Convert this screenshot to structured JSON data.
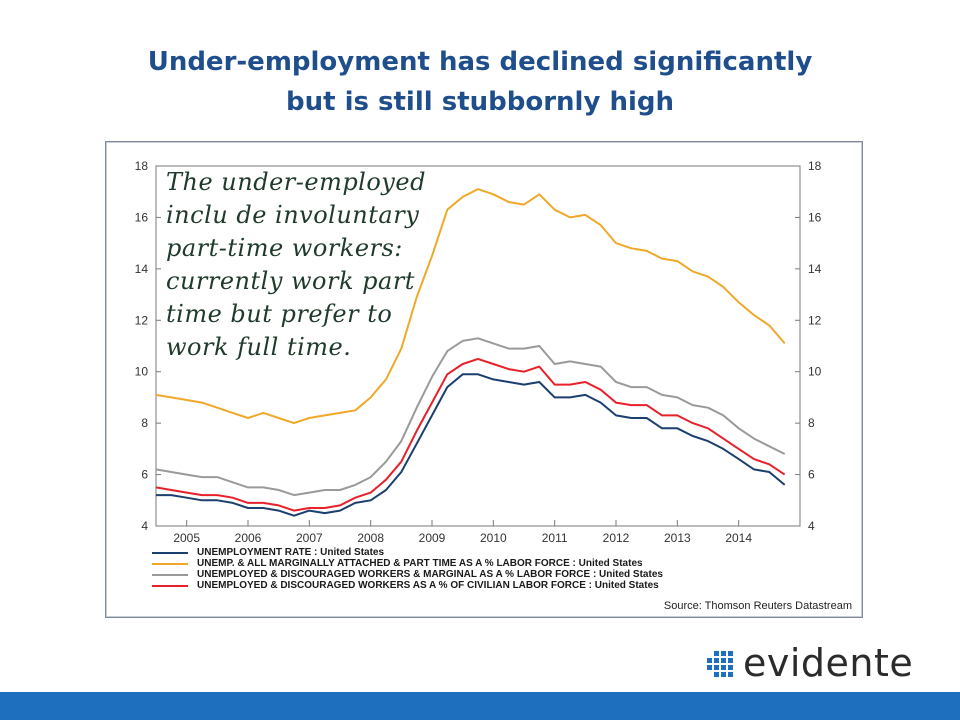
{
  "slide": {
    "title_line1": "Under-employment has declined significantly",
    "title_line2": "but is still stubbornly high"
  },
  "annotation": {
    "lines": [
      "The under-employed",
      "inclu de involuntary",
      "part-time workers:",
      "currently work part",
      "time but prefer to",
      "work full time."
    ]
  },
  "logo": {
    "text": "evidente",
    "color": "#1f6fbf"
  },
  "footer": {
    "bar_color": "#1f6fbf"
  },
  "chart_data": {
    "type": "line",
    "source": "Source: Thomson Reuters Datastream",
    "ylim": [
      4,
      18
    ],
    "yticks": [
      4,
      6,
      8,
      10,
      12,
      14,
      16,
      18
    ],
    "xlim": [
      2004.5,
      2015.0
    ],
    "xticks": [
      "2005",
      "2006",
      "2007",
      "2008",
      "2009",
      "2010",
      "2011",
      "2012",
      "2013",
      "2014"
    ],
    "grid": false,
    "legend_position": "bottom",
    "series": [
      {
        "name": "UNEMPLOYMENT RATE : United States",
        "color": "#1b3f6e",
        "x": [
          2004.5,
          2004.75,
          2005.0,
          2005.25,
          2005.5,
          2005.75,
          2006.0,
          2006.25,
          2006.5,
          2006.75,
          2007.0,
          2007.25,
          2007.5,
          2007.75,
          2008.0,
          2008.25,
          2008.5,
          2008.75,
          2009.0,
          2009.25,
          2009.5,
          2009.75,
          2010.0,
          2010.25,
          2010.5,
          2010.75,
          2011.0,
          2011.25,
          2011.5,
          2011.75,
          2012.0,
          2012.25,
          2012.5,
          2012.75,
          2013.0,
          2013.25,
          2013.5,
          2013.75,
          2014.0,
          2014.25,
          2014.5,
          2014.75
        ],
        "values": [
          5.2,
          5.2,
          5.1,
          5.0,
          5.0,
          4.9,
          4.7,
          4.7,
          4.6,
          4.4,
          4.6,
          4.5,
          4.6,
          4.9,
          5.0,
          5.4,
          6.1,
          7.2,
          8.3,
          9.4,
          9.9,
          9.9,
          9.7,
          9.6,
          9.5,
          9.6,
          9.0,
          9.0,
          9.1,
          8.8,
          8.3,
          8.2,
          8.2,
          7.8,
          7.8,
          7.5,
          7.3,
          7.0,
          6.6,
          6.2,
          6.1,
          5.6
        ]
      },
      {
        "name": "UNEMP. & ALL MARGINALLY ATTACHED & PART TIME AS A % LABOR FORCE : United States",
        "color": "#f0a828",
        "x": [
          2004.5,
          2004.75,
          2005.0,
          2005.25,
          2005.5,
          2005.75,
          2006.0,
          2006.25,
          2006.5,
          2006.75,
          2007.0,
          2007.25,
          2007.5,
          2007.75,
          2008.0,
          2008.25,
          2008.5,
          2008.75,
          2009.0,
          2009.25,
          2009.5,
          2009.75,
          2010.0,
          2010.25,
          2010.5,
          2010.75,
          2011.0,
          2011.25,
          2011.5,
          2011.75,
          2012.0,
          2012.25,
          2012.5,
          2012.75,
          2013.0,
          2013.25,
          2013.5,
          2013.75,
          2014.0,
          2014.25,
          2014.5,
          2014.75
        ],
        "values": [
          9.1,
          9.0,
          8.9,
          8.8,
          8.6,
          8.4,
          8.2,
          8.4,
          8.2,
          8.0,
          8.2,
          8.3,
          8.4,
          8.5,
          9.0,
          9.7,
          10.9,
          12.9,
          14.5,
          16.3,
          16.8,
          17.1,
          16.9,
          16.6,
          16.5,
          16.9,
          16.3,
          16.0,
          16.1,
          15.7,
          15.0,
          14.8,
          14.7,
          14.4,
          14.3,
          13.9,
          13.7,
          13.3,
          12.7,
          12.2,
          11.8,
          11.1
        ]
      },
      {
        "name": "UNEMPLOYED & DISCOURAGED WORKERS & MARGINAL AS A % LABOR FORCE : United States",
        "color": "#9a9a9a",
        "x": [
          2004.5,
          2004.75,
          2005.0,
          2005.25,
          2005.5,
          2005.75,
          2006.0,
          2006.25,
          2006.5,
          2006.75,
          2007.0,
          2007.25,
          2007.5,
          2007.75,
          2008.0,
          2008.25,
          2008.5,
          2008.75,
          2009.0,
          2009.25,
          2009.5,
          2009.75,
          2010.0,
          2010.25,
          2010.5,
          2010.75,
          2011.0,
          2011.25,
          2011.5,
          2011.75,
          2012.0,
          2012.25,
          2012.5,
          2012.75,
          2013.0,
          2013.25,
          2013.5,
          2013.75,
          2014.0,
          2014.25,
          2014.5,
          2014.75
        ],
        "values": [
          6.2,
          6.1,
          6.0,
          5.9,
          5.9,
          5.7,
          5.5,
          5.5,
          5.4,
          5.2,
          5.3,
          5.4,
          5.4,
          5.6,
          5.9,
          6.5,
          7.3,
          8.6,
          9.8,
          10.8,
          11.2,
          11.3,
          11.1,
          10.9,
          10.9,
          11.0,
          10.3,
          10.4,
          10.3,
          10.2,
          9.6,
          9.4,
          9.4,
          9.1,
          9.0,
          8.7,
          8.6,
          8.3,
          7.8,
          7.4,
          7.1,
          6.8
        ]
      },
      {
        "name": "UNEMPLOYED & DISCOURAGED WORKERS AS A % OF CIVILIAN LABOR FORCE : United States",
        "color": "#e8202a",
        "x": [
          2004.5,
          2004.75,
          2005.0,
          2005.25,
          2005.5,
          2005.75,
          2006.0,
          2006.25,
          2006.5,
          2006.75,
          2007.0,
          2007.25,
          2007.5,
          2007.75,
          2008.0,
          2008.25,
          2008.5,
          2008.75,
          2009.0,
          2009.25,
          2009.5,
          2009.75,
          2010.0,
          2010.25,
          2010.5,
          2010.75,
          2011.0,
          2011.25,
          2011.5,
          2011.75,
          2012.0,
          2012.25,
          2012.5,
          2012.75,
          2013.0,
          2013.25,
          2013.5,
          2013.75,
          2014.0,
          2014.25,
          2014.5,
          2014.75
        ],
        "values": [
          5.5,
          5.4,
          5.3,
          5.2,
          5.2,
          5.1,
          4.9,
          4.9,
          4.8,
          4.6,
          4.7,
          4.7,
          4.8,
          5.1,
          5.3,
          5.8,
          6.5,
          7.7,
          8.8,
          9.9,
          10.3,
          10.5,
          10.3,
          10.1,
          10.0,
          10.2,
          9.5,
          9.5,
          9.6,
          9.3,
          8.8,
          8.7,
          8.7,
          8.3,
          8.3,
          8.0,
          7.8,
          7.4,
          7.0,
          6.6,
          6.4,
          6.0
        ]
      }
    ]
  }
}
